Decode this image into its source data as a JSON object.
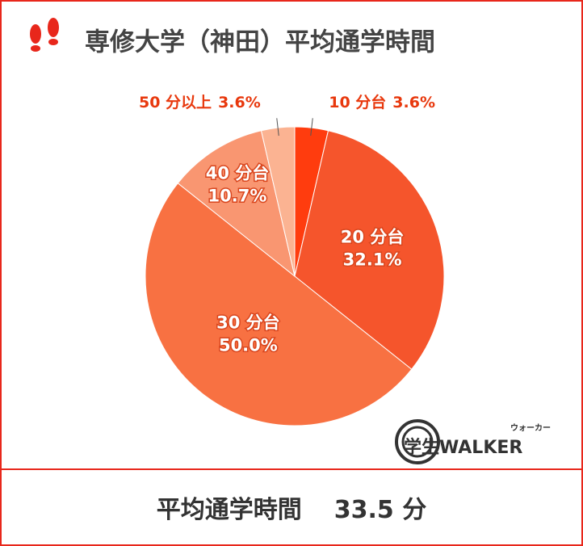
{
  "chart_data": {
    "type": "pie",
    "title": "専修大学（神田）平均通学時間",
    "categories": [
      "10 分台",
      "20 分台",
      "30 分台",
      "40 分台",
      "50 分以上"
    ],
    "values": [
      3.6,
      32.1,
      50.0,
      10.7,
      3.6
    ],
    "value_labels": [
      "3.6%",
      "32.1%",
      "50.0%",
      "10.7%",
      "3.6%"
    ],
    "colors": [
      "#ff3c0e",
      "#f5552c",
      "#f87142",
      "#f99671",
      "#fbb392"
    ]
  },
  "footer": {
    "label": "平均通学時間",
    "value": "33.5 分"
  },
  "logo": {
    "main": "学生WALKER",
    "kana": "ウォーカー"
  }
}
